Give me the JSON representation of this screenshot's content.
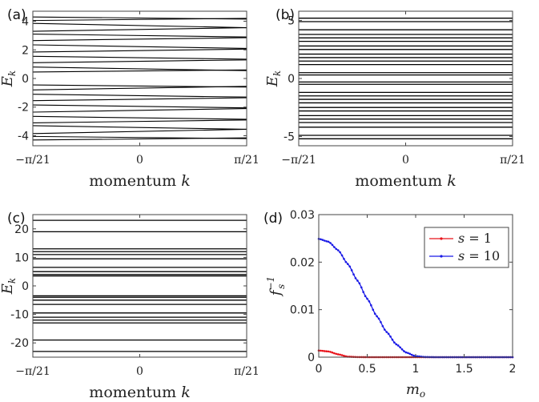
{
  "chart_data": [
    {
      "panel": "(a)",
      "type": "line",
      "ylabel_main": "E",
      "ylabel_sub": "k",
      "xlabel_main": "momentum ",
      "xlabel_var": "k",
      "xticks": [
        "−π/21",
        "0",
        "π/21"
      ],
      "yticks": [
        "-4",
        "-2",
        "0",
        "2",
        "4"
      ],
      "ytick_values": [
        -4,
        -2,
        0,
        2,
        4
      ],
      "ylim": [
        -4.7,
        4.7
      ],
      "xlim": [
        -1,
        1
      ],
      "bands": [
        [
          -4.3,
          -4.15
        ],
        [
          -4.05,
          -4.2
        ],
        [
          -3.85,
          -3.55
        ],
        [
          -3.3,
          -3.55
        ],
        [
          -3.1,
          -2.9
        ],
        [
          -2.65,
          -2.85
        ],
        [
          -2.35,
          -2.1
        ],
        [
          -1.85,
          -2.05
        ],
        [
          -1.55,
          -1.35
        ],
        [
          -1.1,
          -1.3
        ],
        [
          -0.8,
          -0.55
        ],
        [
          -0.45,
          -0.6
        ],
        [
          0.45,
          0.6
        ],
        [
          0.8,
          0.55
        ],
        [
          1.1,
          1.3
        ],
        [
          1.55,
          1.35
        ],
        [
          1.85,
          2.05
        ],
        [
          2.35,
          2.1
        ],
        [
          2.65,
          2.85
        ],
        [
          3.1,
          2.9
        ],
        [
          3.3,
          3.55
        ],
        [
          3.85,
          3.55
        ],
        [
          4.05,
          4.2
        ],
        [
          4.3,
          4.15
        ]
      ]
    },
    {
      "panel": "(b)",
      "type": "line",
      "ylabel_main": "E",
      "ylabel_sub": "k",
      "xlabel_main": "momentum ",
      "xlabel_var": "k",
      "xticks": [
        "−π/21",
        "0",
        "π/21"
      ],
      "yticks": [
        "-5",
        "0",
        "5"
      ],
      "ytick_values": [
        -5,
        0,
        5
      ],
      "ylim": [
        -5.8,
        5.8
      ],
      "xlim": [
        -1,
        1
      ],
      "levels": [
        -5.2,
        -4.9,
        -4.2,
        -3.8,
        -3.5,
        -3.2,
        -2.8,
        -2.5,
        -2.1,
        -1.8,
        -1.5,
        -1.2,
        -0.5,
        -0.3,
        0.3,
        0.5,
        1.2,
        1.5,
        1.8,
        2.1,
        2.5,
        2.8,
        3.2,
        3.5,
        3.8,
        4.2,
        4.9,
        5.2
      ]
    },
    {
      "panel": "(c)",
      "type": "line",
      "ylabel_main": "E",
      "ylabel_sub": "k",
      "xlabel_main": "momentum ",
      "xlabel_var": "k",
      "xticks": [
        "−π/21",
        "0",
        "π/21"
      ],
      "yticks": [
        "-20",
        "-10",
        "0",
        "10",
        "20"
      ],
      "ytick_values": [
        -20,
        -10,
        0,
        10,
        20
      ],
      "ylim": [
        -25,
        25
      ],
      "xlim": [
        -1,
        1
      ],
      "levels": [
        -23,
        -19,
        -13,
        -12,
        -11,
        -9.5,
        -6.5,
        -5,
        -4,
        -3.5,
        3.5,
        4,
        5,
        6.5,
        9.5,
        11,
        12,
        13,
        19,
        23
      ]
    },
    {
      "panel": "(d)",
      "type": "line",
      "ylabel_main": "f",
      "ylabel_sub": "s",
      "ylabel_sup": "−1",
      "xlabel_main": "m",
      "xlabel_sub": "o",
      "xticks": [
        "0",
        "0.5",
        "1",
        "1.5",
        "2"
      ],
      "xtick_values": [
        0,
        0.5,
        1,
        1.5,
        2
      ],
      "yticks": [
        "0",
        "0.01",
        "0.02",
        "0.03"
      ],
      "ytick_values": [
        0,
        0.01,
        0.02,
        0.03
      ],
      "xlim": [
        0,
        2
      ],
      "ylim": [
        0,
        0.03
      ],
      "legend_position": "top-right",
      "series": [
        {
          "name_main": "s",
          "name_rest": " = 1",
          "color": "#e8131b",
          "x": [
            0,
            0.1,
            0.2,
            0.3,
            0.4,
            0.5,
            1.0,
            2.0
          ],
          "y": [
            0.0014,
            0.0012,
            0.0006,
            0.0001,
            2e-05,
            0,
            0,
            0
          ]
        },
        {
          "name_main": "s",
          "name_rest": " = 10",
          "color": "#1a1ae6",
          "x": [
            0,
            0.1,
            0.2,
            0.3,
            0.4,
            0.5,
            0.6,
            0.7,
            0.8,
            0.9,
            1.0,
            1.1,
            1.2,
            1.5,
            2.0
          ],
          "y": [
            0.0249,
            0.0243,
            0.0225,
            0.0196,
            0.0161,
            0.0123,
            0.0086,
            0.0053,
            0.0027,
            0.001,
            0.0002,
            3e-05,
            0,
            0,
            0
          ]
        }
      ]
    }
  ]
}
